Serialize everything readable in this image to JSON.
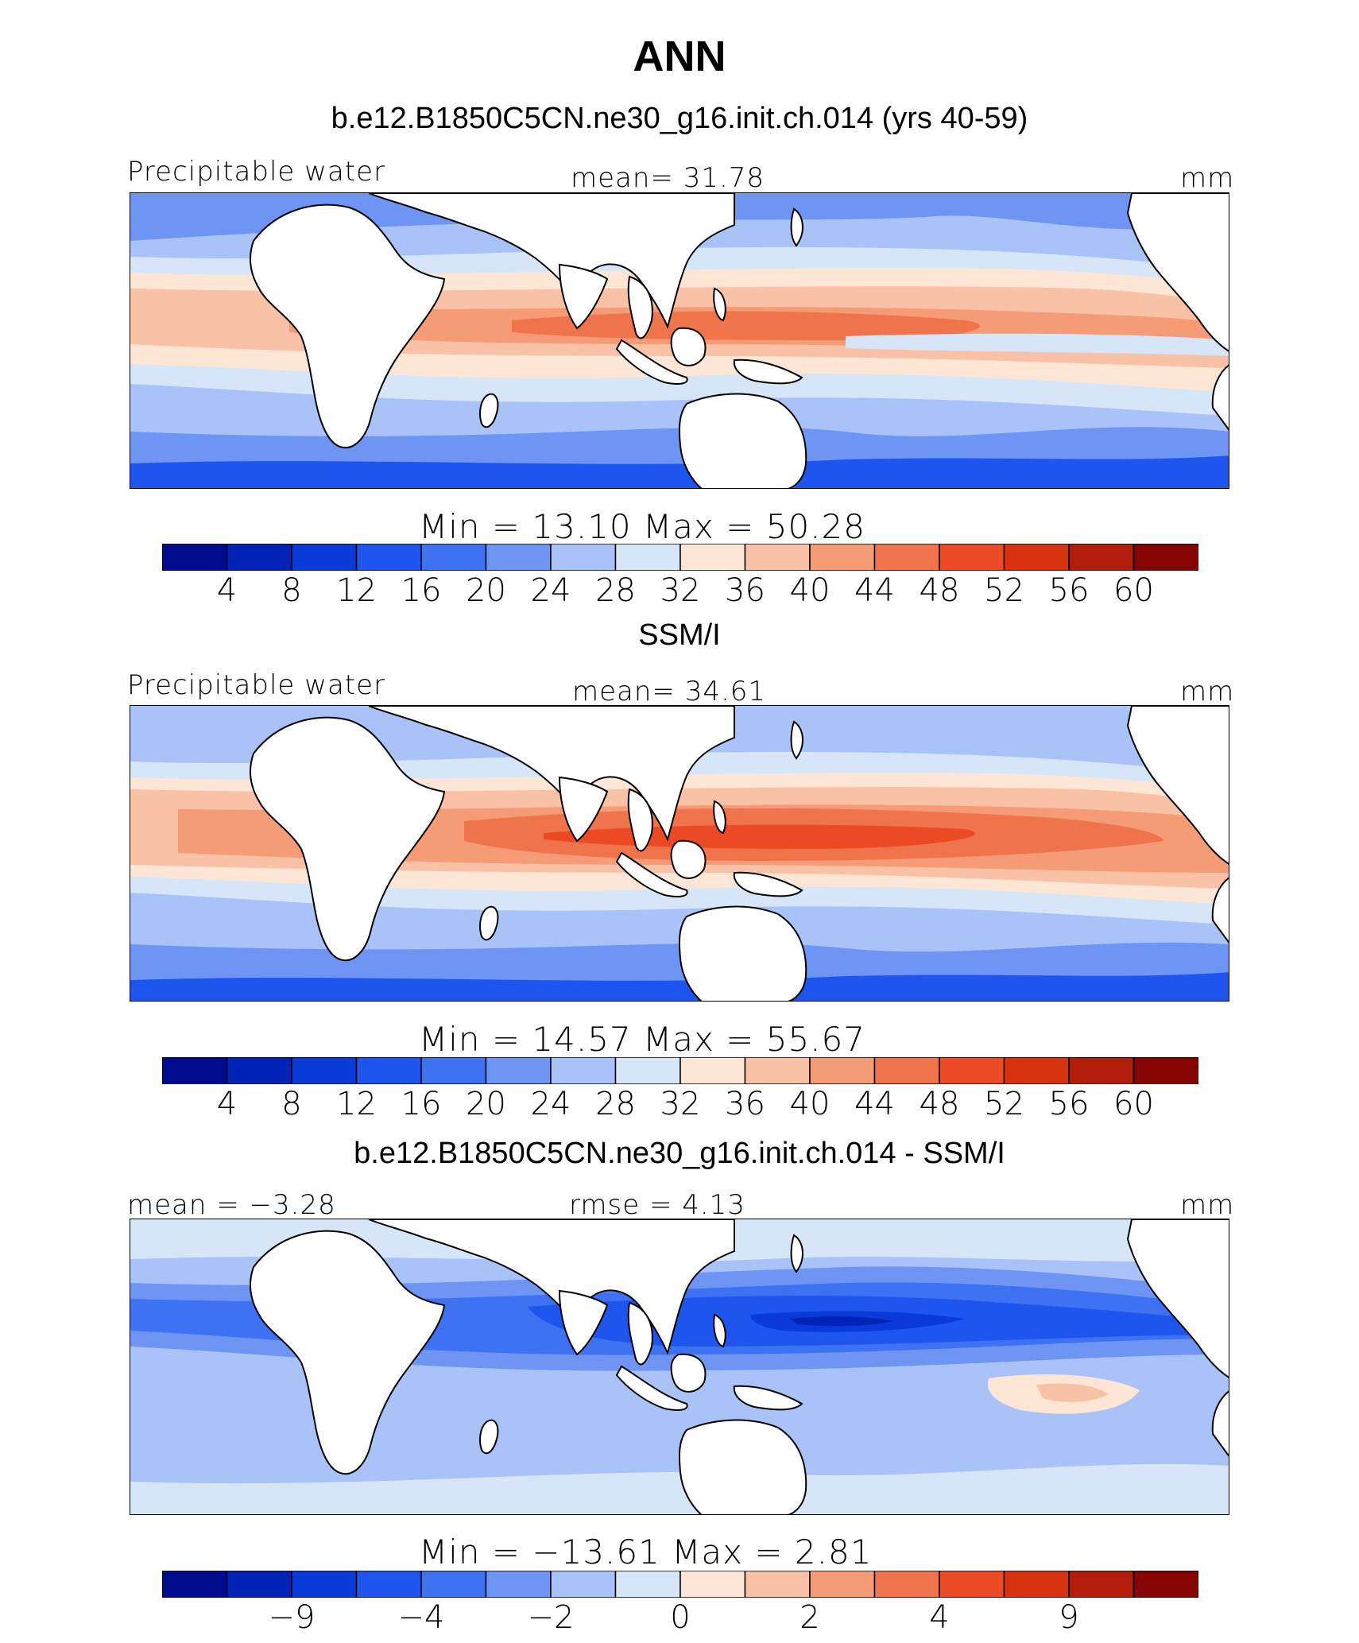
{
  "figure": {
    "title": "ANN",
    "palette": [
      "#000b8f",
      "#0022b7",
      "#0a3ad8",
      "#1e55ee",
      "#3e72f3",
      "#6e95f4",
      "#a9c2f7",
      "#d7e5f8",
      "#fde6d6",
      "#f9c2a6",
      "#f59c77",
      "#f0744b",
      "#eb4a24",
      "#d73110",
      "#b11d08",
      "#850303"
    ],
    "coast_color": "#000000"
  },
  "panels": [
    {
      "title": "b.e12.B1850C5CN.ne30_g16.init.ch.014 (yrs 40-59)",
      "left_label": "Precipitable water",
      "center_label": "mean=  31.78",
      "right_label": "mm",
      "stats": "Min  =   13.10  Max  =   50.28",
      "colorbar_ticks": [
        "4",
        "8",
        "12",
        "16",
        "20",
        "24",
        "28",
        "32",
        "36",
        "40",
        "44",
        "48",
        "52",
        "56",
        "60"
      ]
    },
    {
      "title": "SSM/I",
      "left_label": "Precipitable water",
      "center_label": "mean=  34.61",
      "right_label": "mm",
      "stats": "Min  =   14.57  Max  =   55.67",
      "colorbar_ticks": [
        "4",
        "8",
        "12",
        "16",
        "20",
        "24",
        "28",
        "32",
        "36",
        "40",
        "44",
        "48",
        "52",
        "56",
        "60"
      ]
    },
    {
      "title": "b.e12.B1850C5CN.ne30_g16.init.ch.014 - SSM/I",
      "left_label": "mean =  −3.28",
      "center_label": "rmse =    4.13",
      "right_label": "mm",
      "stats": "Min  = −13.61  Max  =    2.81",
      "colorbar_ticks": [
        "−9",
        "−4",
        "−2",
        "0",
        "2",
        "4",
        "9"
      ]
    }
  ],
  "chart_data": [
    {
      "type": "heatmap",
      "title": "b.e12.B1850C5CN.ne30_g16.init.ch.014 (yrs 40-59)",
      "variable": "Precipitable water",
      "units": "mm",
      "mean": 31.78,
      "min": 13.1,
      "max": 50.28,
      "contour_levels": [
        4,
        8,
        12,
        16,
        20,
        24,
        28,
        32,
        36,
        40,
        44,
        48,
        52,
        56,
        60
      ]
    },
    {
      "type": "heatmap",
      "title": "SSM/I",
      "variable": "Precipitable water",
      "units": "mm",
      "mean": 34.61,
      "min": 14.57,
      "max": 55.67,
      "contour_levels": [
        4,
        8,
        12,
        16,
        20,
        24,
        28,
        32,
        36,
        40,
        44,
        48,
        52,
        56,
        60
      ]
    },
    {
      "type": "heatmap",
      "title": "b.e12.B1850C5CN.ne30_g16.init.ch.014 - SSM/I",
      "units": "mm",
      "mean": -3.28,
      "rmse": 4.13,
      "min": -13.61,
      "max": 2.81,
      "contour_levels": [
        -9,
        -4,
        -2,
        0,
        2,
        4,
        9
      ]
    }
  ]
}
